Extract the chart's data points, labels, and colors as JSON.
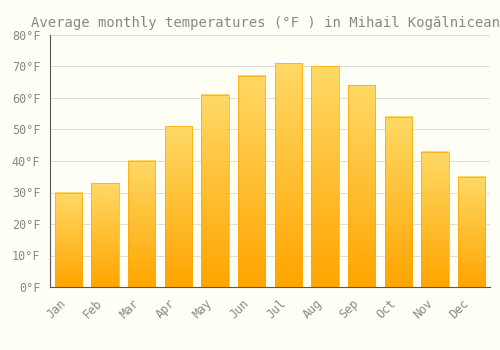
{
  "title": "Average monthly temperatures (°F ) in Mihail Kogălniceanu",
  "months": [
    "Jan",
    "Feb",
    "Mar",
    "Apr",
    "May",
    "Jun",
    "Jul",
    "Aug",
    "Sep",
    "Oct",
    "Nov",
    "Dec"
  ],
  "values": [
    30,
    33,
    40,
    51,
    61,
    67,
    71,
    70,
    64,
    54,
    43,
    35
  ],
  "bar_color_top": "#FFD966",
  "bar_color_bottom": "#FFA500",
  "background_color": "#FFFFF5",
  "grid_color": "#DDDDDD",
  "text_color": "#888888",
  "ylim": [
    0,
    80
  ],
  "yticks": [
    0,
    10,
    20,
    30,
    40,
    50,
    60,
    70,
    80
  ],
  "ytick_labels": [
    "0°F",
    "10°F",
    "20°F",
    "30°F",
    "40°F",
    "50°F",
    "60°F",
    "70°F",
    "80°F"
  ],
  "title_fontsize": 10,
  "tick_fontsize": 8.5,
  "font_family": "monospace"
}
